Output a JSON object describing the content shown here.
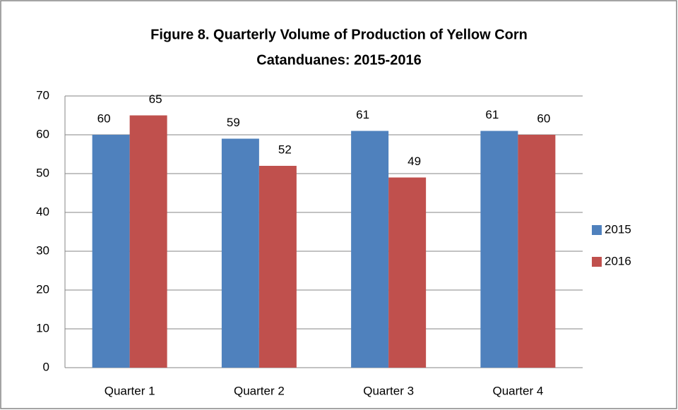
{
  "chart_data": {
    "type": "bar",
    "title": [
      "Figure 8. Quarterly Volume of Production of Yellow Corn",
      "Catanduanes: 2015-2016"
    ],
    "categories": [
      "Quarter 1",
      "Quarter 2",
      "Quarter 3",
      "Quarter 4"
    ],
    "series": [
      {
        "name": "2015",
        "color": "#4f81bd",
        "values": [
          60,
          59,
          61,
          61
        ]
      },
      {
        "name": "2016",
        "color": "#c0504d",
        "values": [
          65,
          52,
          49,
          60
        ]
      }
    ],
    "ylim": [
      0,
      70
    ],
    "yticks": [
      0,
      10,
      20,
      30,
      40,
      50,
      60,
      70
    ],
    "grid": true,
    "legend": "right"
  }
}
